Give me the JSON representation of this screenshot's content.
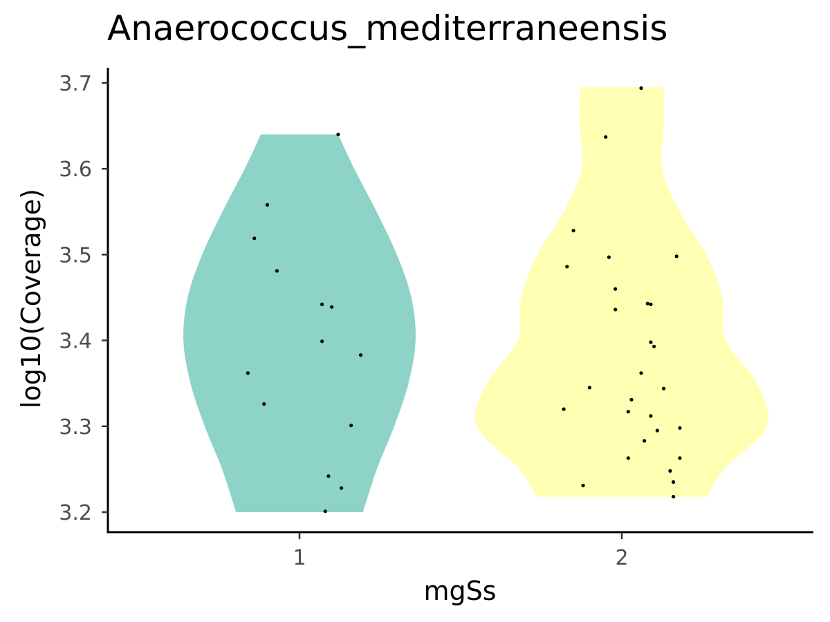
{
  "chart_data": {
    "type": "violin",
    "title": "Anaerococcus_mediterraneensis",
    "xlabel": "mgSs",
    "ylabel": "log10(Coverage)",
    "categories": [
      "1",
      "2"
    ],
    "ylim": [
      3.178,
      3.715
    ],
    "yticks": [
      3.2,
      3.3,
      3.4,
      3.5,
      3.6,
      3.7
    ],
    "ytick_labels": [
      "3.2",
      "3.3",
      "3.4",
      "3.5",
      "3.6",
      "3.7"
    ],
    "grid": false,
    "legend": "none",
    "colors": {
      "1": "#8DD3C7",
      "2": "#FFFFB3",
      "points": "#000000"
    },
    "series": [
      {
        "category": "1",
        "density_profile": [
          [
            3.2,
            0.197
          ],
          [
            3.25,
            0.24
          ],
          [
            3.3,
            0.294
          ],
          [
            3.35,
            0.338
          ],
          [
            3.4,
            0.36
          ],
          [
            3.45,
            0.347
          ],
          [
            3.5,
            0.302
          ],
          [
            3.55,
            0.239
          ],
          [
            3.6,
            0.17
          ],
          [
            3.64,
            0.12
          ]
        ],
        "points": [
          [
            1.12,
            3.64
          ],
          [
            0.9,
            3.558
          ],
          [
            0.86,
            3.519
          ],
          [
            0.93,
            3.481
          ],
          [
            1.07,
            3.442
          ],
          [
            1.1,
            3.439
          ],
          [
            1.07,
            3.399
          ],
          [
            1.19,
            3.383
          ],
          [
            0.84,
            3.362
          ],
          [
            0.89,
            3.326
          ],
          [
            1.16,
            3.301
          ],
          [
            1.09,
            3.242
          ],
          [
            1.13,
            3.228
          ],
          [
            1.08,
            3.201
          ]
        ]
      },
      {
        "category": "2",
        "density_profile": [
          [
            3.218,
            0.265
          ],
          [
            3.25,
            0.317
          ],
          [
            3.3,
            0.45
          ],
          [
            3.35,
            0.419
          ],
          [
            3.4,
            0.323
          ],
          [
            3.45,
            0.312
          ],
          [
            3.5,
            0.262
          ],
          [
            3.55,
            0.18
          ],
          [
            3.6,
            0.125
          ],
          [
            3.65,
            0.13
          ],
          [
            3.695,
            0.13
          ]
        ],
        "points": [
          [
            2.06,
            3.694
          ],
          [
            1.95,
            3.637
          ],
          [
            1.85,
            3.528
          ],
          [
            1.83,
            3.486
          ],
          [
            1.96,
            3.497
          ],
          [
            2.17,
            3.498
          ],
          [
            1.98,
            3.46
          ],
          [
            2.08,
            3.443
          ],
          [
            2.09,
            3.442
          ],
          [
            1.98,
            3.436
          ],
          [
            2.09,
            3.398
          ],
          [
            2.1,
            3.393
          ],
          [
            2.06,
            3.362
          ],
          [
            1.9,
            3.345
          ],
          [
            2.13,
            3.344
          ],
          [
            2.03,
            3.331
          ],
          [
            1.82,
            3.32
          ],
          [
            2.02,
            3.317
          ],
          [
            2.09,
            3.312
          ],
          [
            2.18,
            3.298
          ],
          [
            2.11,
            3.295
          ],
          [
            2.07,
            3.283
          ],
          [
            2.02,
            3.263
          ],
          [
            2.18,
            3.263
          ],
          [
            2.15,
            3.248
          ],
          [
            2.16,
            3.235
          ],
          [
            1.88,
            3.231
          ],
          [
            2.16,
            3.218
          ]
        ]
      }
    ]
  }
}
